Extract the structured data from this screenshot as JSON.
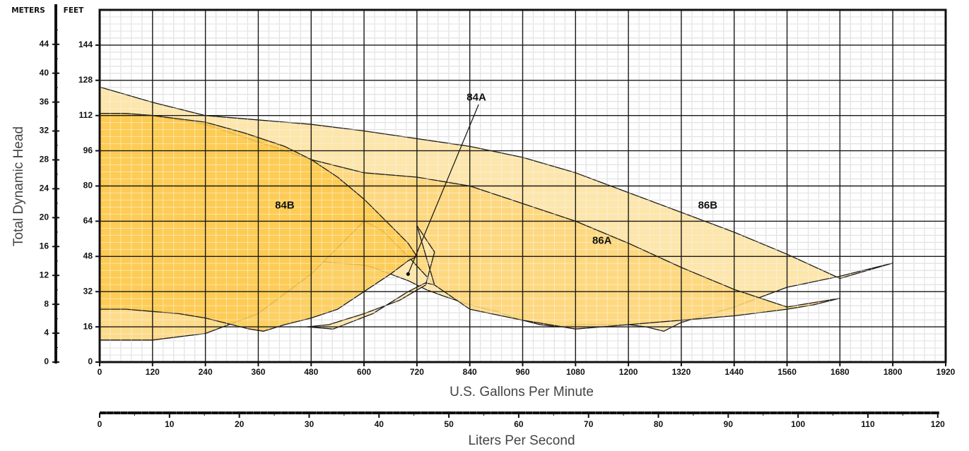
{
  "chart_data": {
    "type": "area",
    "title": "",
    "xlabel": "U.S. Gallons Per Minute",
    "ylabel": "Total Dynamic Head",
    "x_unit_label": "",
    "y_unit_left": "METERS",
    "y_unit_right": "FEET",
    "secondary_x_label": "Liters Per Second",
    "xlim": [
      0,
      1920
    ],
    "ylim_feet": [
      0,
      160
    ],
    "ylim_meters": [
      0,
      48
    ],
    "x_ticks": [
      0,
      120,
      240,
      360,
      480,
      600,
      720,
      840,
      960,
      1080,
      1200,
      1320,
      1440,
      1560,
      1680,
      1800,
      1920
    ],
    "y_ticks_feet": [
      0,
      16,
      32,
      48,
      64,
      80,
      96,
      112,
      128,
      144
    ],
    "y_ticks_meters": [
      0,
      4,
      8,
      12,
      16,
      20,
      24,
      28,
      32,
      36,
      40,
      44
    ],
    "secondary_x_ticks": [
      0,
      10,
      20,
      30,
      40,
      50,
      60,
      70,
      80,
      90,
      100,
      110,
      120
    ],
    "grid": true,
    "colors": {
      "light": "#fde3a0",
      "medium": "#fdd67a",
      "dark": "#fdc94e",
      "grid_major": "#1a1a1a",
      "grid_minor": "#c6c6c6"
    },
    "series": [
      {
        "name": "86B",
        "fill": "light",
        "label_at": [
          1380,
          71
        ],
        "polygon": [
          [
            0,
            125
          ],
          [
            120,
            118
          ],
          [
            240,
            112
          ],
          [
            480,
            108
          ],
          [
            600,
            105
          ],
          [
            840,
            98
          ],
          [
            960,
            93
          ],
          [
            1080,
            86
          ],
          [
            1200,
            77
          ],
          [
            1320,
            68
          ],
          [
            1440,
            59
          ],
          [
            1560,
            49
          ],
          [
            1680,
            38
          ],
          [
            1800,
            45
          ],
          [
            1680,
            39
          ],
          [
            1560,
            34
          ],
          [
            1440,
            25
          ],
          [
            1320,
            18
          ],
          [
            1280,
            14
          ],
          [
            1240,
            16
          ],
          [
            1200,
            17
          ],
          [
            1140,
            17
          ],
          [
            1080,
            17
          ],
          [
            1040,
            16
          ],
          [
            1000,
            17
          ],
          [
            960,
            19
          ],
          [
            900,
            23
          ],
          [
            840,
            26
          ],
          [
            780,
            30
          ],
          [
            740,
            33
          ],
          [
            700,
            37
          ],
          [
            660,
            40
          ],
          [
            620,
            43
          ],
          [
            600,
            44
          ],
          [
            540,
            45
          ],
          [
            480,
            46
          ],
          [
            360,
            50
          ],
          [
            240,
            62
          ],
          [
            120,
            78
          ],
          [
            0,
            89
          ]
        ]
      },
      {
        "name": "86A",
        "fill": "medium",
        "label_at": [
          1140,
          55
        ],
        "polygon": [
          [
            0,
            113
          ],
          [
            120,
            112
          ],
          [
            240,
            108
          ],
          [
            360,
            100
          ],
          [
            480,
            92
          ],
          [
            600,
            86
          ],
          [
            720,
            84
          ],
          [
            840,
            80
          ],
          [
            960,
            72
          ],
          [
            1080,
            64
          ],
          [
            1200,
            54
          ],
          [
            1320,
            43
          ],
          [
            1440,
            33
          ],
          [
            1560,
            25
          ],
          [
            1680,
            29
          ],
          [
            1620,
            26
          ],
          [
            1560,
            24
          ],
          [
            1440,
            21
          ],
          [
            1320,
            19
          ],
          [
            1200,
            17
          ],
          [
            1080,
            15
          ],
          [
            960,
            19
          ],
          [
            840,
            24
          ],
          [
            760,
            35
          ],
          [
            700,
            48
          ],
          [
            640,
            60
          ],
          [
            600,
            64
          ],
          [
            560,
            56
          ],
          [
            480,
            40
          ],
          [
            360,
            22
          ],
          [
            240,
            13
          ],
          [
            120,
            10
          ],
          [
            0,
            10
          ]
        ]
      },
      {
        "name": "84A",
        "fill": "light",
        "label_at": [
          855,
          120
        ],
        "pointer_from": [
          860,
          117
        ],
        "pointer_to": [
          700,
          40
        ],
        "polygon": [
          [
            720,
            62
          ],
          [
            760,
            50
          ],
          [
            740,
            35
          ],
          [
            680,
            28
          ],
          [
            600,
            22
          ],
          [
            520,
            17
          ],
          [
            470,
            16
          ],
          [
            530,
            15
          ],
          [
            620,
            22
          ],
          [
            700,
            32
          ],
          [
            740,
            36
          ],
          [
            760,
            35
          ],
          [
            720,
            62
          ]
        ]
      },
      {
        "name": "84B",
        "fill": "dark",
        "label_at": [
          420,
          71
        ],
        "polygon": [
          [
            0,
            113
          ],
          [
            60,
            113
          ],
          [
            120,
            112
          ],
          [
            240,
            109
          ],
          [
            330,
            104
          ],
          [
            420,
            98
          ],
          [
            480,
            92
          ],
          [
            540,
            84
          ],
          [
            600,
            74
          ],
          [
            660,
            62
          ],
          [
            700,
            54
          ],
          [
            720,
            48
          ],
          [
            700,
            46
          ],
          [
            660,
            40
          ],
          [
            600,
            32
          ],
          [
            540,
            24
          ],
          [
            480,
            20
          ],
          [
            420,
            17
          ],
          [
            372,
            14
          ],
          [
            340,
            15
          ],
          [
            300,
            17
          ],
          [
            240,
            20
          ],
          [
            180,
            22
          ],
          [
            120,
            23
          ],
          [
            60,
            24
          ],
          [
            0,
            24
          ]
        ]
      }
    ]
  }
}
